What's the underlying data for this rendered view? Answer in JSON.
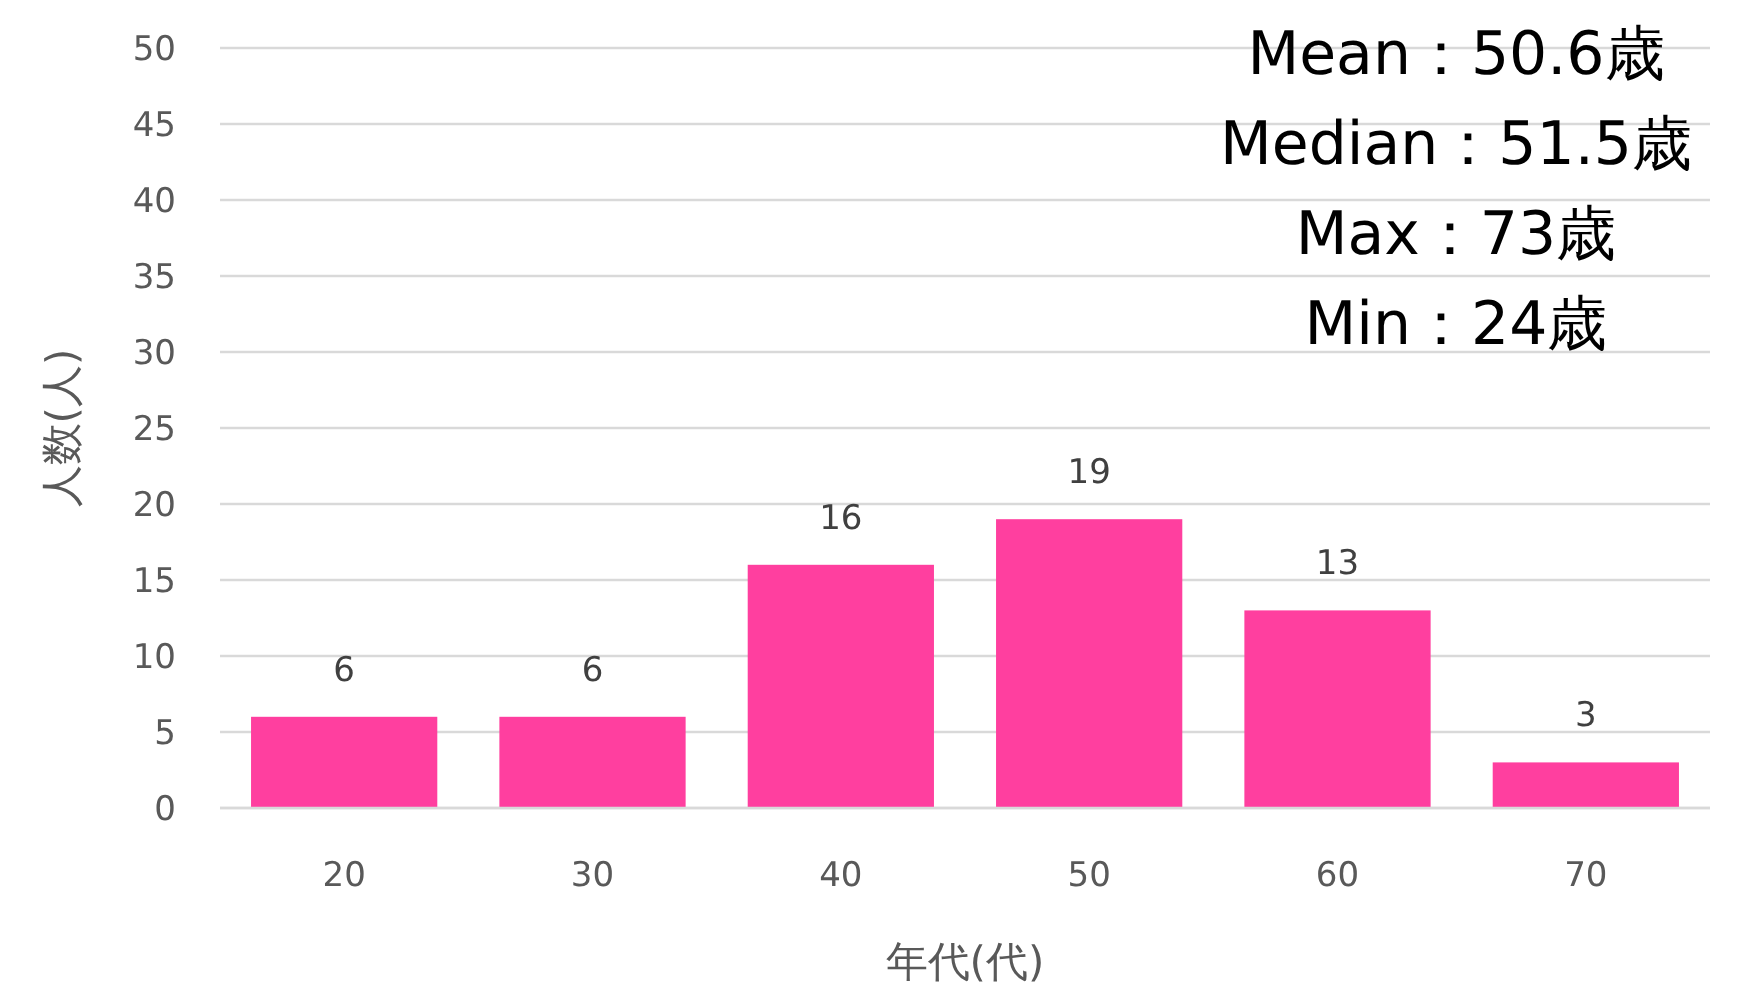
{
  "chart_data": {
    "type": "bar",
    "xlabel": "年代(代)",
    "ylabel": "人数(人)",
    "categories": [
      "20",
      "30",
      "40",
      "50",
      "60",
      "70"
    ],
    "values": [
      6,
      6,
      16,
      19,
      13,
      3
    ],
    "color": "#ff3f9f",
    "ylim": [
      0,
      50
    ],
    "yticks": [
      0,
      5,
      10,
      15,
      20,
      25,
      30,
      35,
      40,
      45,
      50
    ],
    "grid": "y",
    "data_labels": true,
    "annotations": [
      "Mean：50.6歳",
      "Median：51.5歳",
      "Max：73歳",
      "Min：24歳"
    ]
  }
}
